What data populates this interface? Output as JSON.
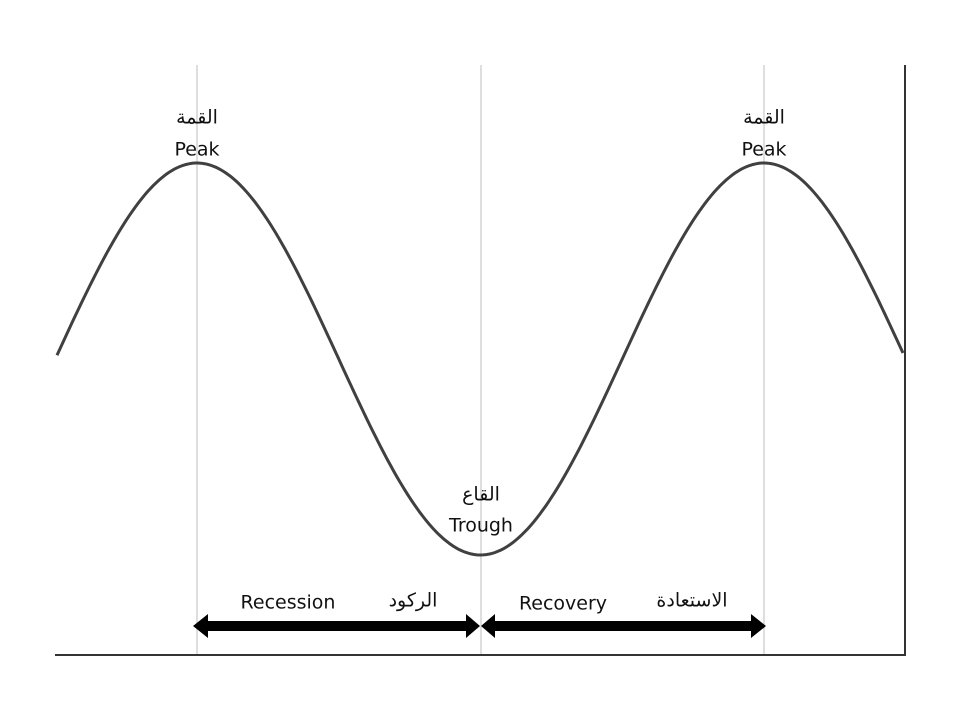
{
  "peaks": [
    {
      "arabic": "القمة",
      "english": "Peak"
    },
    {
      "arabic": "القمة",
      "english": "Peak"
    }
  ],
  "trough": {
    "arabic": "القاع",
    "english": "Trough"
  },
  "phases": [
    {
      "english": "Recession",
      "arabic": "الركود"
    },
    {
      "english": "Recovery",
      "arabic": "الاستعادة"
    }
  ]
}
